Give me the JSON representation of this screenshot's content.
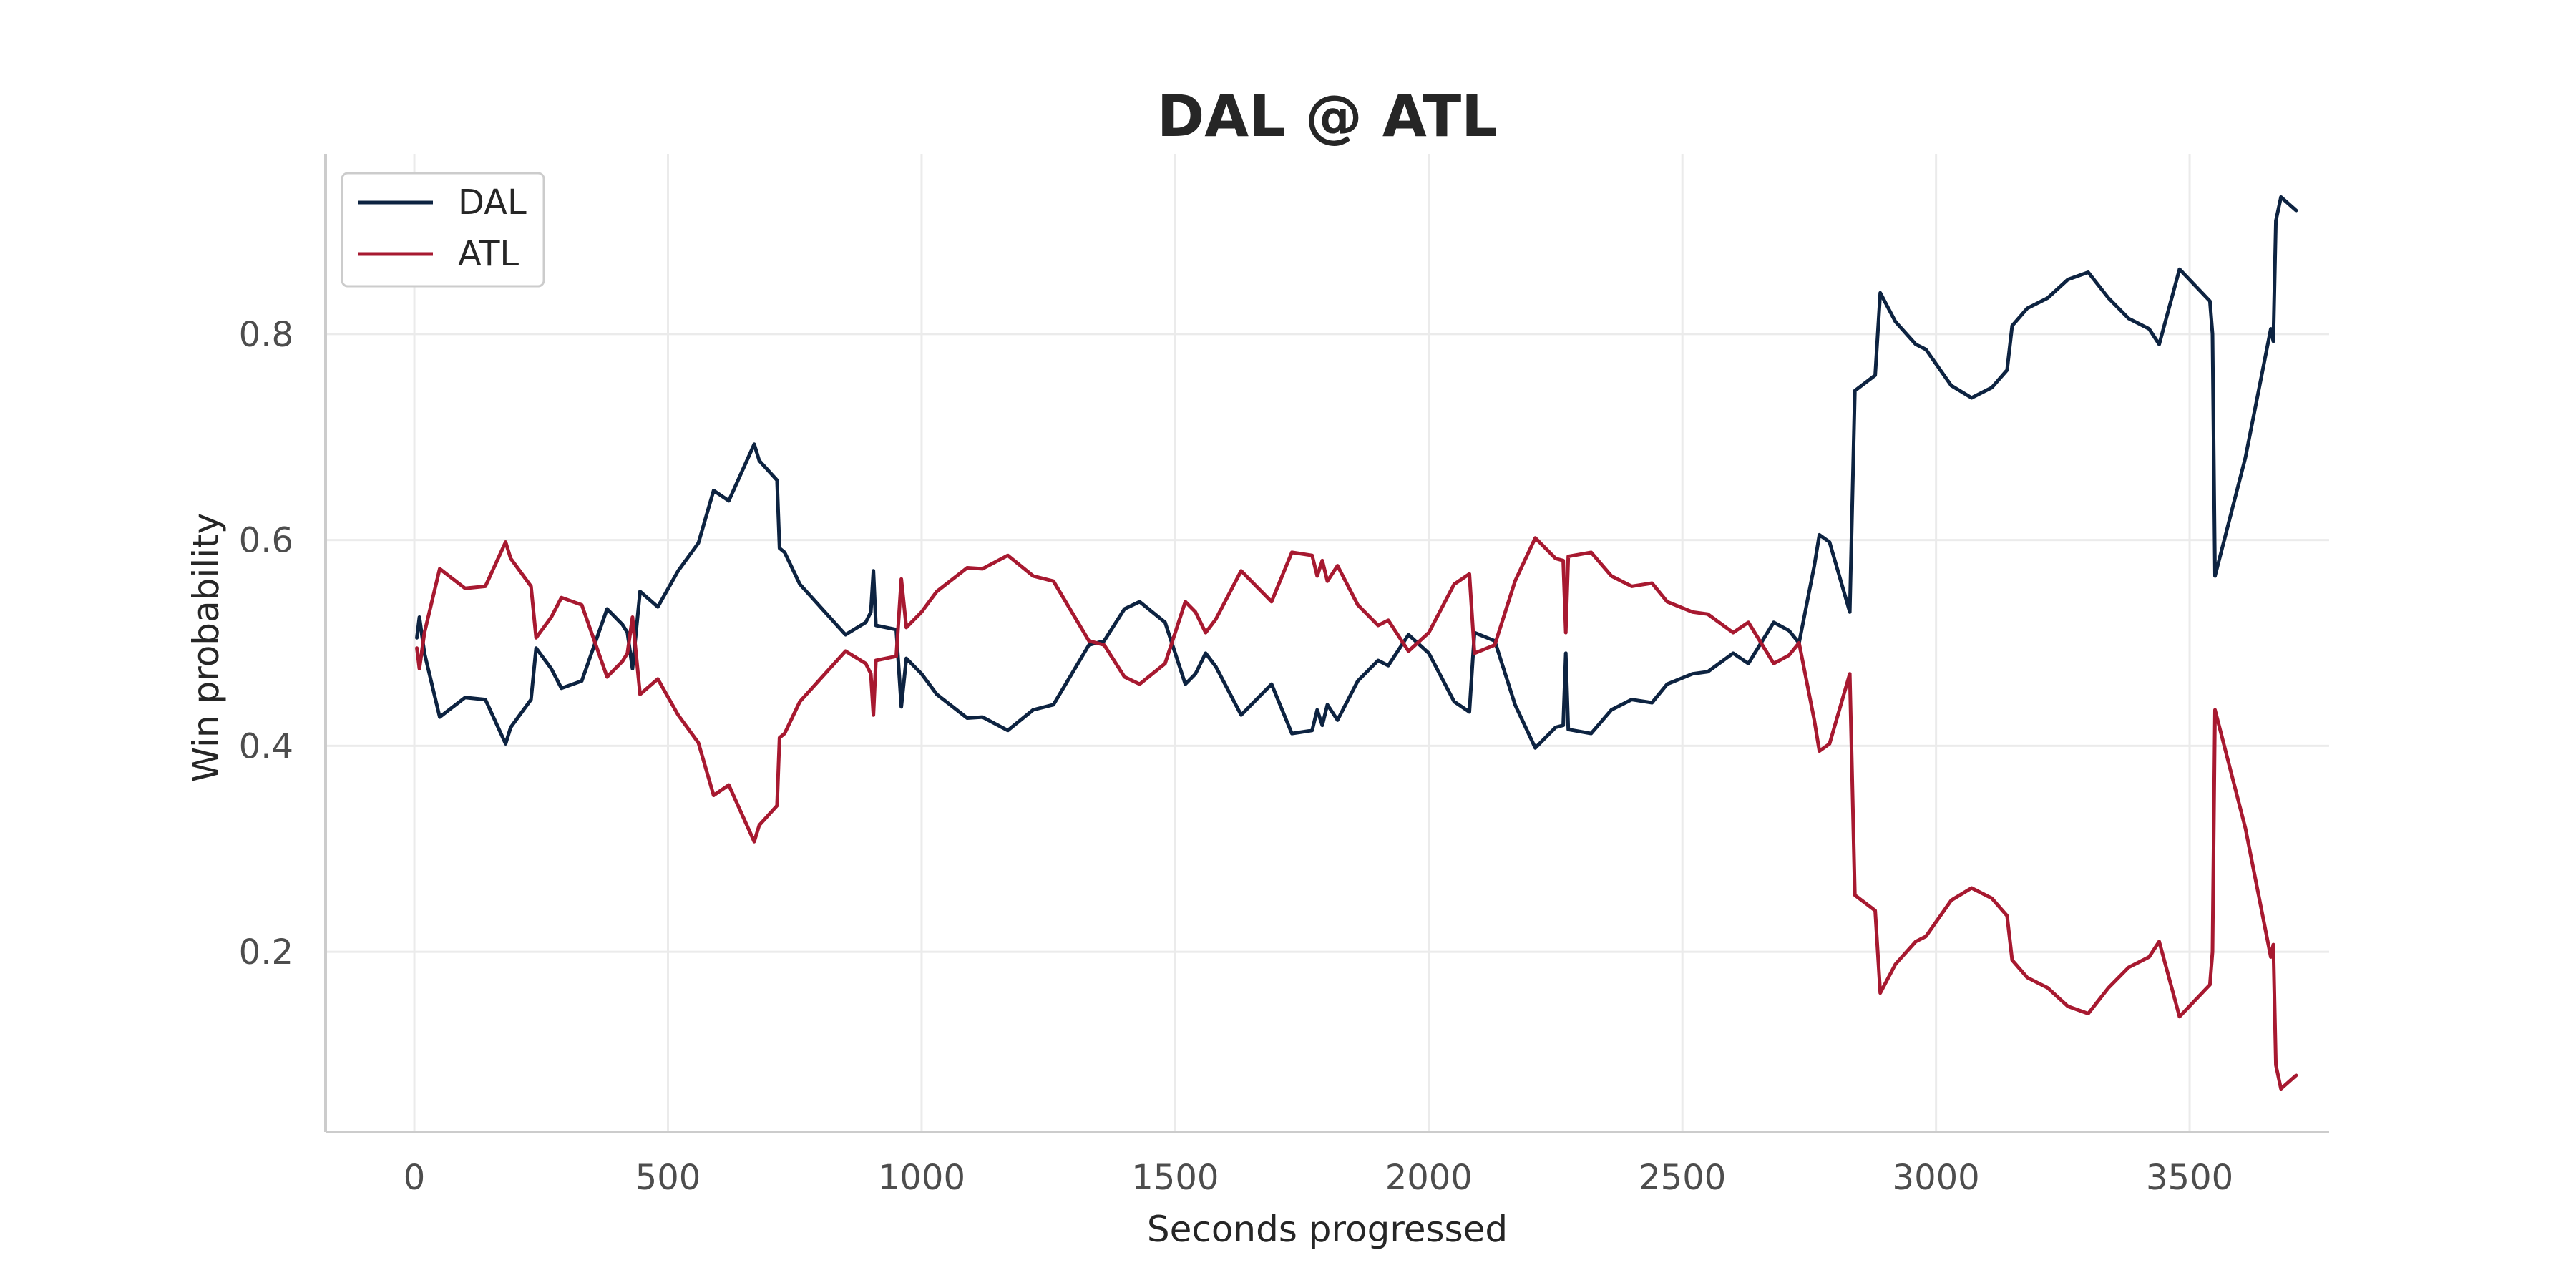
{
  "chart_data": {
    "type": "line",
    "title": "DAL @ ATL",
    "xlabel": "Seconds progressed",
    "ylabel": "Win probability",
    "xlim": [
      -175,
      3775
    ],
    "ylim": [
      0.025,
      0.975
    ],
    "xticks": [
      0,
      500,
      1000,
      1500,
      2000,
      2500,
      3000,
      3500
    ],
    "yticks": [
      0.2,
      0.4,
      0.6,
      0.8
    ],
    "xtick_labels": [
      "0",
      "500",
      "1000",
      "1500",
      "2000",
      "2500",
      "3000",
      "3500"
    ],
    "ytick_labels": [
      "0.2",
      "0.4",
      "0.6",
      "0.8"
    ],
    "grid": true,
    "legend_position": "top-left",
    "series": [
      {
        "name": "DAL",
        "color": "#0d2341",
        "points": [
          [
            5,
            0.505
          ],
          [
            10,
            0.525
          ],
          [
            20,
            0.49
          ],
          [
            50,
            0.428
          ],
          [
            100,
            0.447
          ],
          [
            140,
            0.445
          ],
          [
            180,
            0.402
          ],
          [
            190,
            0.418
          ],
          [
            230,
            0.445
          ],
          [
            240,
            0.495
          ],
          [
            270,
            0.475
          ],
          [
            290,
            0.456
          ],
          [
            330,
            0.463
          ],
          [
            380,
            0.533
          ],
          [
            410,
            0.518
          ],
          [
            420,
            0.51
          ],
          [
            430,
            0.475
          ],
          [
            445,
            0.55
          ],
          [
            480,
            0.535
          ],
          [
            520,
            0.57
          ],
          [
            560,
            0.597
          ],
          [
            590,
            0.648
          ],
          [
            620,
            0.638
          ],
          [
            670,
            0.693
          ],
          [
            680,
            0.677
          ],
          [
            715,
            0.658
          ],
          [
            720,
            0.592
          ],
          [
            730,
            0.588
          ],
          [
            760,
            0.557
          ],
          [
            850,
            0.508
          ],
          [
            890,
            0.52
          ],
          [
            900,
            0.53
          ],
          [
            905,
            0.57
          ],
          [
            910,
            0.517
          ],
          [
            950,
            0.513
          ],
          [
            960,
            0.438
          ],
          [
            970,
            0.485
          ],
          [
            1000,
            0.47
          ],
          [
            1030,
            0.45
          ],
          [
            1090,
            0.427
          ],
          [
            1120,
            0.428
          ],
          [
            1170,
            0.415
          ],
          [
            1220,
            0.435
          ],
          [
            1260,
            0.44
          ],
          [
            1330,
            0.498
          ],
          [
            1360,
            0.502
          ],
          [
            1400,
            0.533
          ],
          [
            1430,
            0.54
          ],
          [
            1480,
            0.52
          ],
          [
            1520,
            0.46
          ],
          [
            1540,
            0.47
          ],
          [
            1560,
            0.49
          ],
          [
            1580,
            0.477
          ],
          [
            1630,
            0.43
          ],
          [
            1690,
            0.46
          ],
          [
            1730,
            0.412
          ],
          [
            1770,
            0.415
          ],
          [
            1780,
            0.435
          ],
          [
            1790,
            0.42
          ],
          [
            1800,
            0.44
          ],
          [
            1820,
            0.425
          ],
          [
            1860,
            0.463
          ],
          [
            1900,
            0.483
          ],
          [
            1920,
            0.478
          ],
          [
            1960,
            0.508
          ],
          [
            2000,
            0.49
          ],
          [
            2050,
            0.443
          ],
          [
            2080,
            0.433
          ],
          [
            2090,
            0.51
          ],
          [
            2130,
            0.502
          ],
          [
            2170,
            0.44
          ],
          [
            2210,
            0.398
          ],
          [
            2250,
            0.418
          ],
          [
            2265,
            0.42
          ],
          [
            2270,
            0.49
          ],
          [
            2275,
            0.416
          ],
          [
            2320,
            0.412
          ],
          [
            2360,
            0.435
          ],
          [
            2400,
            0.445
          ],
          [
            2440,
            0.442
          ],
          [
            2470,
            0.46
          ],
          [
            2520,
            0.47
          ],
          [
            2550,
            0.472
          ],
          [
            2600,
            0.49
          ],
          [
            2630,
            0.48
          ],
          [
            2680,
            0.52
          ],
          [
            2710,
            0.512
          ],
          [
            2730,
            0.5
          ],
          [
            2760,
            0.575
          ],
          [
            2770,
            0.605
          ],
          [
            2790,
            0.598
          ],
          [
            2830,
            0.53
          ],
          [
            2840,
            0.745
          ],
          [
            2880,
            0.76
          ],
          [
            2890,
            0.84
          ],
          [
            2920,
            0.812
          ],
          [
            2960,
            0.79
          ],
          [
            2980,
            0.785
          ],
          [
            3030,
            0.75
          ],
          [
            3070,
            0.738
          ],
          [
            3110,
            0.748
          ],
          [
            3140,
            0.765
          ],
          [
            3150,
            0.808
          ],
          [
            3180,
            0.825
          ],
          [
            3220,
            0.835
          ],
          [
            3260,
            0.853
          ],
          [
            3300,
            0.86
          ],
          [
            3340,
            0.835
          ],
          [
            3380,
            0.815
          ],
          [
            3400,
            0.81
          ],
          [
            3420,
            0.805
          ],
          [
            3440,
            0.79
          ],
          [
            3480,
            0.863
          ],
          [
            3540,
            0.832
          ],
          [
            3545,
            0.8
          ],
          [
            3550,
            0.565
          ],
          [
            3610,
            0.68
          ],
          [
            3660,
            0.805
          ],
          [
            3665,
            0.793
          ],
          [
            3670,
            0.91
          ],
          [
            3680,
            0.933
          ],
          [
            3710,
            0.92
          ]
        ]
      },
      {
        "name": "ATL",
        "color": "#a71930",
        "points": [
          [
            5,
            0.495
          ],
          [
            10,
            0.475
          ],
          [
            20,
            0.51
          ],
          [
            50,
            0.572
          ],
          [
            100,
            0.553
          ],
          [
            140,
            0.555
          ],
          [
            180,
            0.598
          ],
          [
            190,
            0.582
          ],
          [
            230,
            0.555
          ],
          [
            240,
            0.505
          ],
          [
            270,
            0.525
          ],
          [
            290,
            0.544
          ],
          [
            330,
            0.537
          ],
          [
            380,
            0.467
          ],
          [
            410,
            0.482
          ],
          [
            420,
            0.49
          ],
          [
            430,
            0.525
          ],
          [
            445,
            0.45
          ],
          [
            480,
            0.465
          ],
          [
            520,
            0.43
          ],
          [
            560,
            0.403
          ],
          [
            590,
            0.352
          ],
          [
            620,
            0.362
          ],
          [
            670,
            0.307
          ],
          [
            680,
            0.323
          ],
          [
            715,
            0.342
          ],
          [
            720,
            0.408
          ],
          [
            730,
            0.412
          ],
          [
            760,
            0.443
          ],
          [
            850,
            0.492
          ],
          [
            890,
            0.48
          ],
          [
            900,
            0.47
          ],
          [
            905,
            0.43
          ],
          [
            910,
            0.483
          ],
          [
            950,
            0.487
          ],
          [
            960,
            0.562
          ],
          [
            970,
            0.515
          ],
          [
            1000,
            0.53
          ],
          [
            1030,
            0.55
          ],
          [
            1090,
            0.573
          ],
          [
            1120,
            0.572
          ],
          [
            1170,
            0.585
          ],
          [
            1220,
            0.565
          ],
          [
            1260,
            0.56
          ],
          [
            1330,
            0.502
          ],
          [
            1360,
            0.498
          ],
          [
            1400,
            0.467
          ],
          [
            1430,
            0.46
          ],
          [
            1480,
            0.48
          ],
          [
            1520,
            0.54
          ],
          [
            1540,
            0.53
          ],
          [
            1560,
            0.51
          ],
          [
            1580,
            0.523
          ],
          [
            1630,
            0.57
          ],
          [
            1690,
            0.54
          ],
          [
            1730,
            0.588
          ],
          [
            1770,
            0.585
          ],
          [
            1780,
            0.565
          ],
          [
            1790,
            0.58
          ],
          [
            1800,
            0.56
          ],
          [
            1820,
            0.575
          ],
          [
            1860,
            0.537
          ],
          [
            1900,
            0.517
          ],
          [
            1920,
            0.522
          ],
          [
            1960,
            0.492
          ],
          [
            2000,
            0.51
          ],
          [
            2050,
            0.557
          ],
          [
            2080,
            0.567
          ],
          [
            2090,
            0.49
          ],
          [
            2130,
            0.498
          ],
          [
            2170,
            0.56
          ],
          [
            2210,
            0.602
          ],
          [
            2250,
            0.582
          ],
          [
            2265,
            0.58
          ],
          [
            2270,
            0.51
          ],
          [
            2275,
            0.584
          ],
          [
            2320,
            0.588
          ],
          [
            2360,
            0.565
          ],
          [
            2400,
            0.555
          ],
          [
            2440,
            0.558
          ],
          [
            2470,
            0.54
          ],
          [
            2520,
            0.53
          ],
          [
            2550,
            0.528
          ],
          [
            2600,
            0.51
          ],
          [
            2630,
            0.52
          ],
          [
            2680,
            0.48
          ],
          [
            2710,
            0.488
          ],
          [
            2730,
            0.5
          ],
          [
            2760,
            0.425
          ],
          [
            2770,
            0.395
          ],
          [
            2790,
            0.402
          ],
          [
            2830,
            0.47
          ],
          [
            2840,
            0.255
          ],
          [
            2880,
            0.24
          ],
          [
            2890,
            0.16
          ],
          [
            2920,
            0.188
          ],
          [
            2960,
            0.21
          ],
          [
            2980,
            0.215
          ],
          [
            3030,
            0.25
          ],
          [
            3070,
            0.262
          ],
          [
            3110,
            0.252
          ],
          [
            3140,
            0.235
          ],
          [
            3150,
            0.192
          ],
          [
            3180,
            0.175
          ],
          [
            3220,
            0.165
          ],
          [
            3260,
            0.147
          ],
          [
            3300,
            0.14
          ],
          [
            3340,
            0.165
          ],
          [
            3380,
            0.185
          ],
          [
            3400,
            0.19
          ],
          [
            3420,
            0.195
          ],
          [
            3440,
            0.21
          ],
          [
            3480,
            0.137
          ],
          [
            3540,
            0.168
          ],
          [
            3545,
            0.2
          ],
          [
            3550,
            0.435
          ],
          [
            3610,
            0.32
          ],
          [
            3660,
            0.195
          ],
          [
            3665,
            0.207
          ],
          [
            3670,
            0.09
          ],
          [
            3680,
            0.067
          ],
          [
            3710,
            0.08
          ]
        ]
      }
    ]
  }
}
